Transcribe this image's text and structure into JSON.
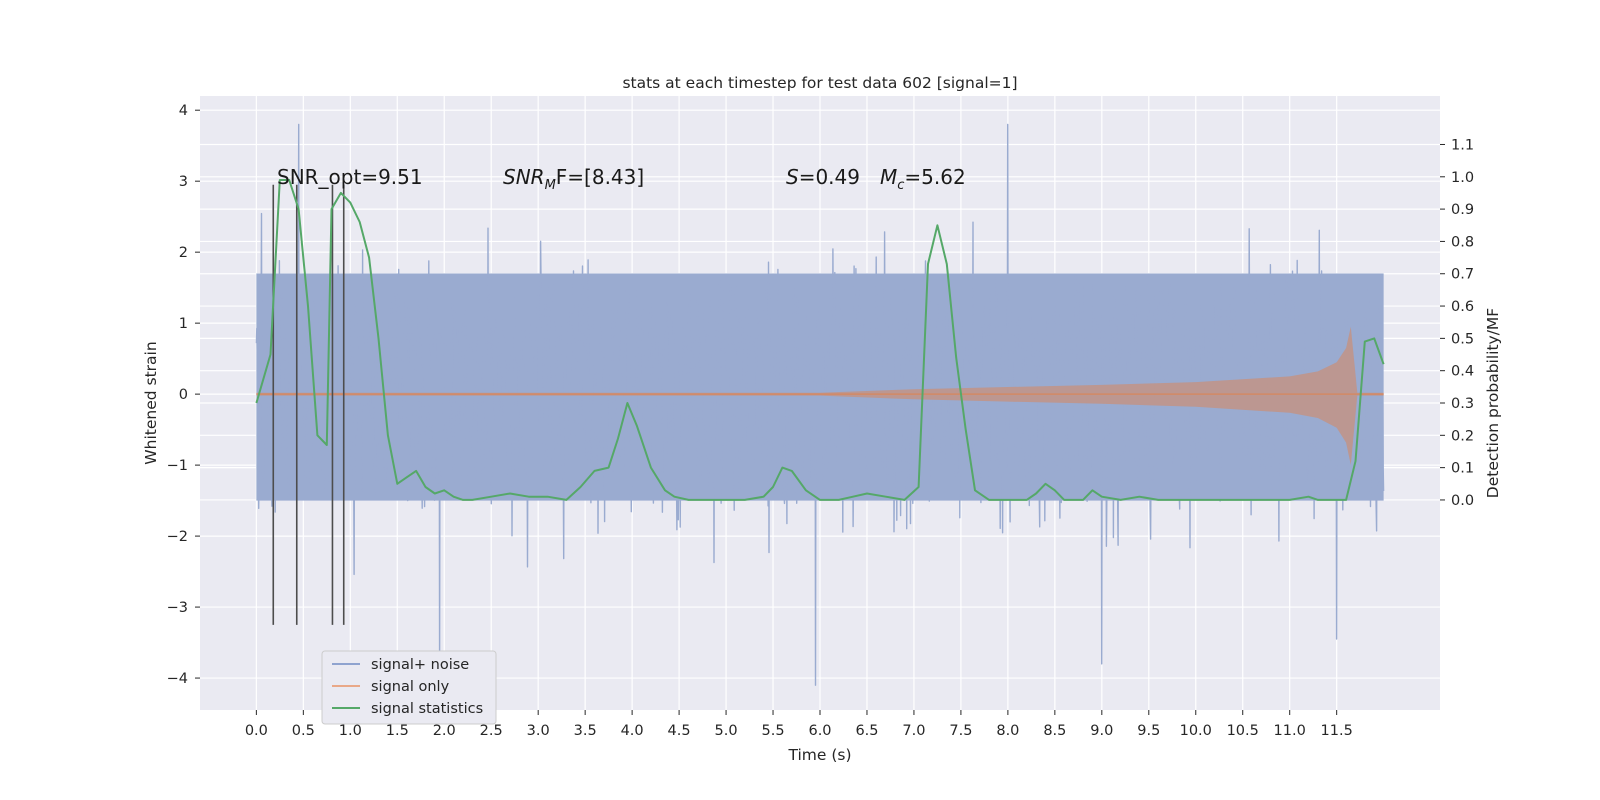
{
  "chart_data": {
    "type": "line",
    "title": "stats at each timestep for test data 602 [signal=1]",
    "xlabel": "Time (s)",
    "ylabel": "Whitened strain",
    "ylabel_right": "Detection probability/MF",
    "xlim": [
      -0.6,
      12.6
    ],
    "ylim": [
      -4.45,
      4.2
    ],
    "ylim_right": [
      -0.65,
      1.25
    ],
    "x_ticks": [
      "0.0",
      "0.5",
      "1.0",
      "1.5",
      "2.0",
      "2.5",
      "3.0",
      "3.5",
      "4.0",
      "4.5",
      "5.0",
      "5.5",
      "6.0",
      "6.5",
      "7.0",
      "7.5",
      "8.0",
      "8.5",
      "9.0",
      "9.5",
      "10.0",
      "10.5",
      "11.0",
      "11.5"
    ],
    "y_ticks": [
      "4",
      "3",
      "2",
      "1",
      "0",
      "−1",
      "−2",
      "−3",
      "−4"
    ],
    "y_ticks_right": [
      "1.1",
      "1.0",
      "0.9",
      "0.8",
      "0.7",
      "0.6",
      "0.5",
      "0.4",
      "0.3",
      "0.2",
      "0.1",
      "0.0"
    ],
    "grid": true,
    "legend": {
      "position": "lower-left",
      "entries": [
        "signal+ noise",
        "signal only",
        "signal statistics"
      ]
    },
    "colors": {
      "noise": "#9aabd0",
      "signal_only": "#dd8452",
      "statistics": "#55a868",
      "markers": "#4d4d4d",
      "axes_bg": "#eaeaf2"
    },
    "annotations": {
      "snr_opt": "SNR_opt=9.51",
      "snr_mf_main": "SNR",
      "snr_mf_sub": "M",
      "snr_mf_rest": "F=[8.43]",
      "s_sym": "S",
      "s_val": "=0.49",
      "mc_sym": "M",
      "mc_sub": "c",
      "mc_val": "=5.62"
    },
    "series": [
      {
        "name": "signal+ noise",
        "x_range": [
          0.0,
          12.0
        ],
        "band_typical": [
          -1.5,
          1.7
        ],
        "notable_peaks": [
          [
            0.45,
            3.8
          ],
          [
            8.0,
            3.8
          ],
          [
            1.95,
            -3.9
          ],
          [
            5.95,
            -4.1
          ],
          [
            9.0,
            -3.8
          ],
          [
            11.5,
            -3.45
          ]
        ]
      },
      {
        "name": "signal only",
        "envelope_x": [
          0.0,
          6.0,
          7.0,
          8.0,
          9.0,
          10.0,
          11.0,
          11.3,
          11.5,
          11.6,
          11.65,
          11.72,
          12.0
        ],
        "envelope_amp": [
          0.02,
          0.02,
          0.07,
          0.1,
          0.13,
          0.17,
          0.25,
          0.32,
          0.45,
          0.65,
          0.95,
          0.02,
          0.02
        ]
      },
      {
        "name": "signal statistics",
        "axis": "right",
        "x": [
          0.0,
          0.15,
          0.25,
          0.35,
          0.45,
          0.55,
          0.65,
          0.75,
          0.8,
          0.9,
          1.0,
          1.1,
          1.2,
          1.3,
          1.4,
          1.5,
          1.6,
          1.7,
          1.8,
          1.9,
          2.0,
          2.1,
          2.2,
          2.3,
          2.5,
          2.7,
          2.9,
          3.1,
          3.3,
          3.45,
          3.6,
          3.75,
          3.85,
          3.95,
          4.05,
          4.2,
          4.35,
          4.45,
          4.6,
          4.8,
          5.0,
          5.2,
          5.4,
          5.5,
          5.6,
          5.7,
          5.85,
          6.0,
          6.2,
          6.35,
          6.5,
          6.7,
          6.9,
          7.05,
          7.15,
          7.25,
          7.35,
          7.45,
          7.55,
          7.65,
          7.8,
          8.0,
          8.2,
          8.3,
          8.4,
          8.5,
          8.6,
          8.8,
          8.9,
          9.0,
          9.2,
          9.4,
          9.6,
          9.8,
          10.0,
          10.2,
          10.4,
          10.6,
          10.8,
          11.0,
          11.2,
          11.3,
          11.4,
          11.5,
          11.6,
          11.7,
          11.8,
          11.9,
          12.0
        ],
        "y": [
          0.3,
          0.45,
          0.99,
          0.99,
          0.9,
          0.6,
          0.2,
          0.17,
          0.9,
          0.95,
          0.92,
          0.86,
          0.75,
          0.5,
          0.2,
          0.05,
          0.07,
          0.09,
          0.04,
          0.02,
          0.03,
          0.01,
          0.0,
          0.0,
          0.01,
          0.02,
          0.01,
          0.01,
          0.0,
          0.04,
          0.09,
          0.1,
          0.19,
          0.3,
          0.23,
          0.1,
          0.03,
          0.01,
          0.0,
          0.0,
          0.0,
          0.0,
          0.01,
          0.04,
          0.1,
          0.09,
          0.03,
          0.0,
          0.0,
          0.01,
          0.02,
          0.01,
          0.0,
          0.04,
          0.73,
          0.85,
          0.73,
          0.44,
          0.22,
          0.03,
          0.0,
          0.0,
          0.0,
          0.02,
          0.05,
          0.03,
          0.0,
          0.0,
          0.03,
          0.01,
          0.0,
          0.01,
          0.0,
          0.0,
          0.0,
          0.0,
          0.0,
          0.0,
          0.0,
          0.0,
          0.01,
          0.0,
          0.0,
          0.0,
          0.0,
          0.12,
          0.49,
          0.5,
          0.42
        ]
      }
    ],
    "marker_lines_x": [
      0.18,
      0.43,
      0.81,
      0.93
    ],
    "marker_lines_y": [
      -3.25,
      2.95
    ]
  }
}
